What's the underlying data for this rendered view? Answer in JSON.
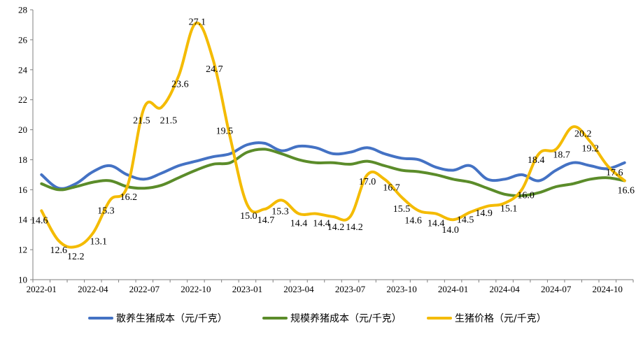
{
  "chart_data": {
    "type": "line",
    "title": "",
    "xlabel": "",
    "ylabel": "",
    "ylim": [
      10,
      28
    ],
    "yticks": [
      "10",
      "12",
      "14",
      "16",
      "18",
      "20",
      "22",
      "24",
      "26",
      "28"
    ],
    "grid": false,
    "legend_position": "bottom",
    "x": [
      "2022-01",
      "2022-02",
      "2022-03",
      "2022-04",
      "2022-05",
      "2022-06",
      "2022-07",
      "2022-08",
      "2022-09",
      "2022-10",
      "2022-11",
      "2022-12",
      "2023-01",
      "2023-02",
      "2023-03",
      "2023-04",
      "2023-05",
      "2023-06",
      "2023-07",
      "2023-08",
      "2023-09",
      "2023-10",
      "2023-11",
      "2023-12",
      "2024-01",
      "2024-02",
      "2024-03",
      "2024-04",
      "2024-05",
      "2024-06",
      "2024-07",
      "2024-08",
      "2024-09",
      "2024-10",
      "2024-11"
    ],
    "xtick_labels": [
      "2022-01",
      "2022-04",
      "2022-07",
      "2022-10",
      "2023-01",
      "2023-04",
      "2023-07",
      "2023-10",
      "2024-01",
      "2024-04",
      "2024-07",
      "2024-10"
    ],
    "series": [
      {
        "name": "散养生猪成本（元/千克）",
        "color": "#4472C4",
        "values": [
          17.0,
          16.1,
          16.4,
          17.2,
          17.6,
          17.0,
          16.7,
          17.1,
          17.6,
          17.9,
          18.2,
          18.4,
          19.0,
          19.1,
          18.6,
          18.9,
          18.8,
          18.4,
          18.5,
          18.8,
          18.4,
          18.1,
          18.0,
          17.5,
          17.3,
          17.6,
          16.7,
          16.7,
          17.0,
          16.6,
          17.3,
          17.8,
          17.6,
          17.4,
          17.8
        ],
        "labels": []
      },
      {
        "name": "规模养猪成本（元/千克）",
        "color": "#5B8C2A",
        "values": [
          16.4,
          16.0,
          16.2,
          16.5,
          16.6,
          16.2,
          16.1,
          16.3,
          16.8,
          17.3,
          17.7,
          17.8,
          18.5,
          18.7,
          18.4,
          18.0,
          17.8,
          17.8,
          17.7,
          17.9,
          17.6,
          17.3,
          17.2,
          17.0,
          16.7,
          16.5,
          16.1,
          15.7,
          15.6,
          15.8,
          16.2,
          16.4,
          16.7,
          16.8,
          16.6
        ],
        "labels": []
      },
      {
        "name": "生猪价格（元/千克）",
        "color": "#F4BB00",
        "values": [
          14.6,
          12.6,
          12.2,
          13.1,
          15.3,
          16.2,
          21.5,
          21.5,
          23.6,
          27.1,
          24.7,
          19.5,
          15.0,
          14.7,
          15.3,
          14.4,
          14.4,
          14.2,
          14.2,
          17.0,
          16.7,
          15.5,
          14.6,
          14.4,
          14.0,
          14.5,
          14.9,
          15.1,
          16.0,
          18.4,
          18.7,
          20.2,
          19.2,
          17.6,
          16.6
        ],
        "labels": [
          "14.6",
          "12.6",
          "12.2",
          "13.1",
          "15.3",
          "16.2",
          "21.5",
          "21.5",
          "23.6",
          "27.1",
          "24.7",
          "19.5",
          "15.0",
          "14.7",
          "15.3",
          "14.4",
          "14.4",
          "14.2",
          "14.2",
          "17.0",
          "16.7",
          "15.5",
          "14.6",
          "14.4",
          "14.0",
          "14.5",
          "14.9",
          "15.1",
          "16.0",
          "18.4",
          "18.7",
          "20.2",
          "19.2",
          "17.6",
          "16.6"
        ]
      }
    ]
  }
}
